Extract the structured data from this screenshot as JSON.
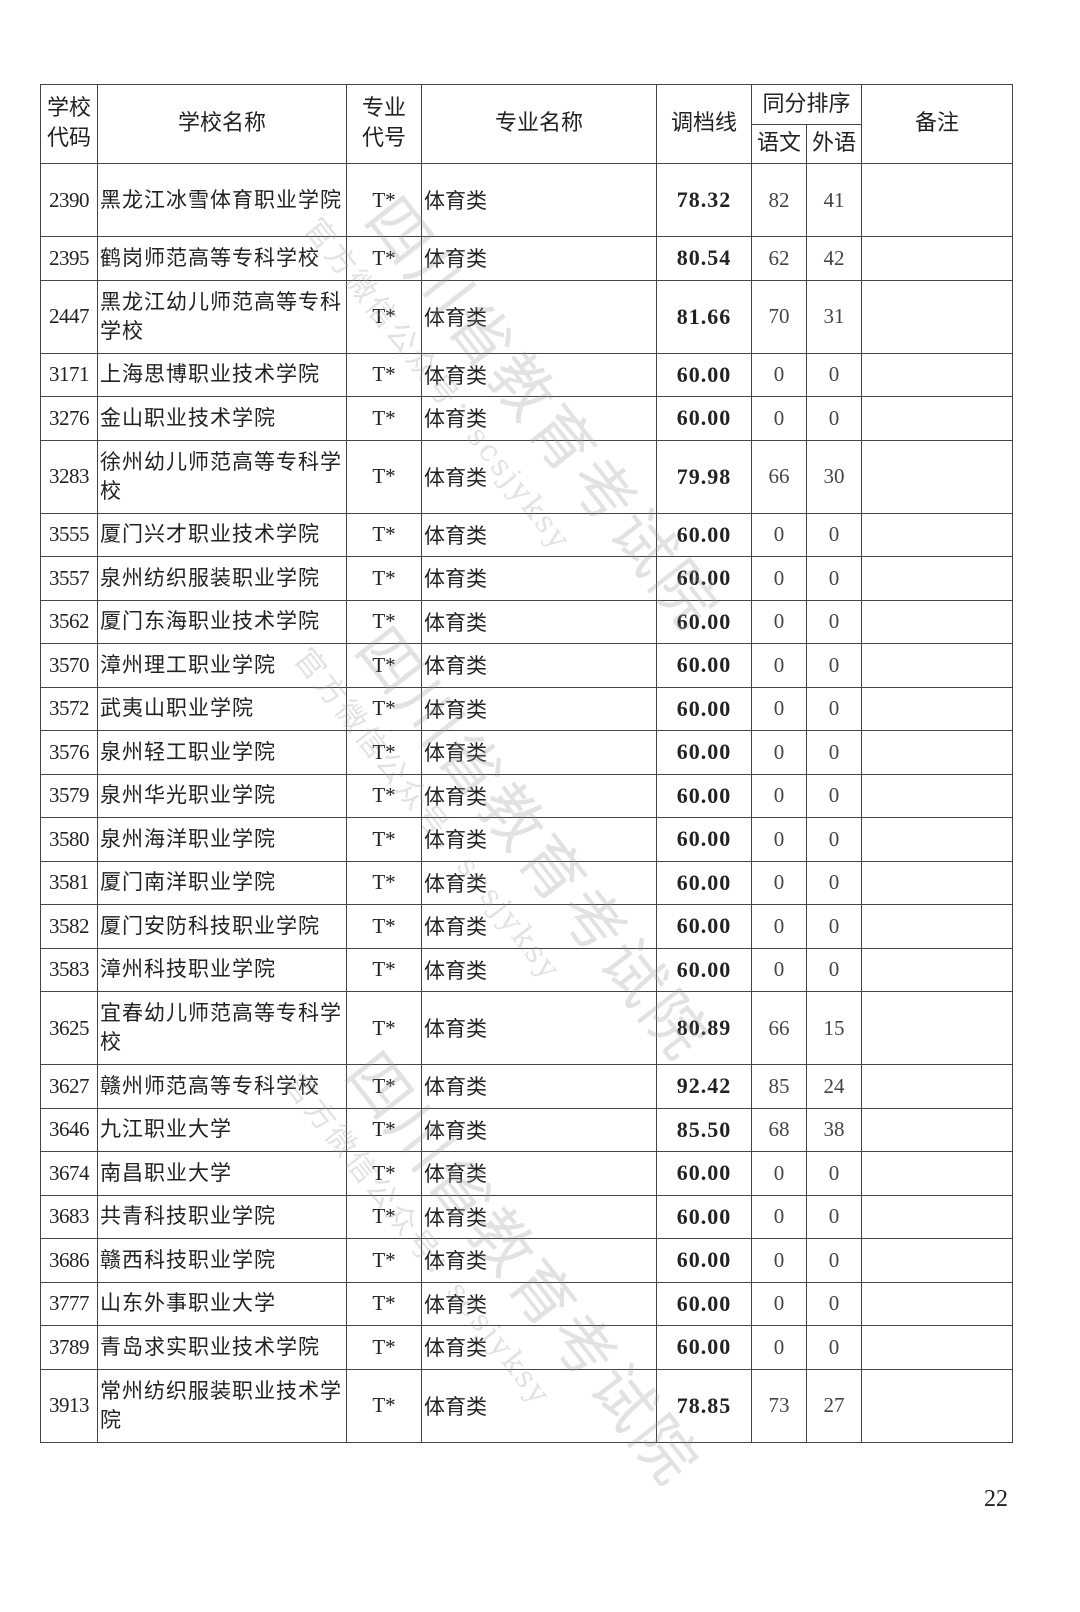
{
  "header": {
    "school_code": "学校代码",
    "school_name": "学校名称",
    "major_code": "专业代号",
    "major_name": "专业名称",
    "cutoff": "调档线",
    "tie_break": "同分排序",
    "chinese": "语文",
    "foreign": "外语",
    "remarks": "备注"
  },
  "rows": [
    {
      "code": "2390",
      "name": "黑龙江冰雪体育职业学院",
      "mcode": "T*",
      "major": "体育类",
      "score": "78.32",
      "chinese": "82",
      "foreign": "41",
      "tall": true
    },
    {
      "code": "2395",
      "name": "鹤岗师范高等专科学校",
      "mcode": "T*",
      "major": "体育类",
      "score": "80.54",
      "chinese": "62",
      "foreign": "42"
    },
    {
      "code": "2447",
      "name": "黑龙江幼儿师范高等专科学校",
      "mcode": "T*",
      "major": "体育类",
      "score": "81.66",
      "chinese": "70",
      "foreign": "31",
      "tall": true
    },
    {
      "code": "3171",
      "name": "上海思博职业技术学院",
      "mcode": "T*",
      "major": "体育类",
      "score": "60.00",
      "chinese": "0",
      "foreign": "0"
    },
    {
      "code": "3276",
      "name": "金山职业技术学院",
      "mcode": "T*",
      "major": "体育类",
      "score": "60.00",
      "chinese": "0",
      "foreign": "0"
    },
    {
      "code": "3283",
      "name": "徐州幼儿师范高等专科学校",
      "mcode": "T*",
      "major": "体育类",
      "score": "79.98",
      "chinese": "66",
      "foreign": "30",
      "tall": true
    },
    {
      "code": "3555",
      "name": "厦门兴才职业技术学院",
      "mcode": "T*",
      "major": "体育类",
      "score": "60.00",
      "chinese": "0",
      "foreign": "0"
    },
    {
      "code": "3557",
      "name": "泉州纺织服装职业学院",
      "mcode": "T*",
      "major": "体育类",
      "score": "60.00",
      "chinese": "0",
      "foreign": "0"
    },
    {
      "code": "3562",
      "name": "厦门东海职业技术学院",
      "mcode": "T*",
      "major": "体育类",
      "score": "60.00",
      "chinese": "0",
      "foreign": "0"
    },
    {
      "code": "3570",
      "name": "漳州理工职业学院",
      "mcode": "T*",
      "major": "体育类",
      "score": "60.00",
      "chinese": "0",
      "foreign": "0"
    },
    {
      "code": "3572",
      "name": "武夷山职业学院",
      "mcode": "T*",
      "major": "体育类",
      "score": "60.00",
      "chinese": "0",
      "foreign": "0"
    },
    {
      "code": "3576",
      "name": "泉州轻工职业学院",
      "mcode": "T*",
      "major": "体育类",
      "score": "60.00",
      "chinese": "0",
      "foreign": "0"
    },
    {
      "code": "3579",
      "name": "泉州华光职业学院",
      "mcode": "T*",
      "major": "体育类",
      "score": "60.00",
      "chinese": "0",
      "foreign": "0"
    },
    {
      "code": "3580",
      "name": "泉州海洋职业学院",
      "mcode": "T*",
      "major": "体育类",
      "score": "60.00",
      "chinese": "0",
      "foreign": "0"
    },
    {
      "code": "3581",
      "name": "厦门南洋职业学院",
      "mcode": "T*",
      "major": "体育类",
      "score": "60.00",
      "chinese": "0",
      "foreign": "0"
    },
    {
      "code": "3582",
      "name": "厦门安防科技职业学院",
      "mcode": "T*",
      "major": "体育类",
      "score": "60.00",
      "chinese": "0",
      "foreign": "0"
    },
    {
      "code": "3583",
      "name": "漳州科技职业学院",
      "mcode": "T*",
      "major": "体育类",
      "score": "60.00",
      "chinese": "0",
      "foreign": "0"
    },
    {
      "code": "3625",
      "name": "宜春幼儿师范高等专科学校",
      "mcode": "T*",
      "major": "体育类",
      "score": "80.89",
      "chinese": "66",
      "foreign": "15",
      "tall": true
    },
    {
      "code": "3627",
      "name": "赣州师范高等专科学校",
      "mcode": "T*",
      "major": "体育类",
      "score": "92.42",
      "chinese": "85",
      "foreign": "24"
    },
    {
      "code": "3646",
      "name": "九江职业大学",
      "mcode": "T*",
      "major": "体育类",
      "score": "85.50",
      "chinese": "68",
      "foreign": "38"
    },
    {
      "code": "3674",
      "name": "南昌职业大学",
      "mcode": "T*",
      "major": "体育类",
      "score": "60.00",
      "chinese": "0",
      "foreign": "0"
    },
    {
      "code": "3683",
      "name": "共青科技职业学院",
      "mcode": "T*",
      "major": "体育类",
      "score": "60.00",
      "chinese": "0",
      "foreign": "0"
    },
    {
      "code": "3686",
      "name": "赣西科技职业学院",
      "mcode": "T*",
      "major": "体育类",
      "score": "60.00",
      "chinese": "0",
      "foreign": "0"
    },
    {
      "code": "3777",
      "name": "山东外事职业大学",
      "mcode": "T*",
      "major": "体育类",
      "score": "60.00",
      "chinese": "0",
      "foreign": "0"
    },
    {
      "code": "3789",
      "name": "青岛求实职业技术学院",
      "mcode": "T*",
      "major": "体育类",
      "score": "60.00",
      "chinese": "0",
      "foreign": "0"
    },
    {
      "code": "3913",
      "name": "常州纺织服装职业技术学院",
      "mcode": "T*",
      "major": "体育类",
      "score": "78.85",
      "chinese": "73",
      "foreign": "27",
      "tall": true
    }
  ],
  "watermark": {
    "main": "四川省教育考试院",
    "sub": "官方微信公众号：scsjyksy"
  },
  "page_number": "22"
}
